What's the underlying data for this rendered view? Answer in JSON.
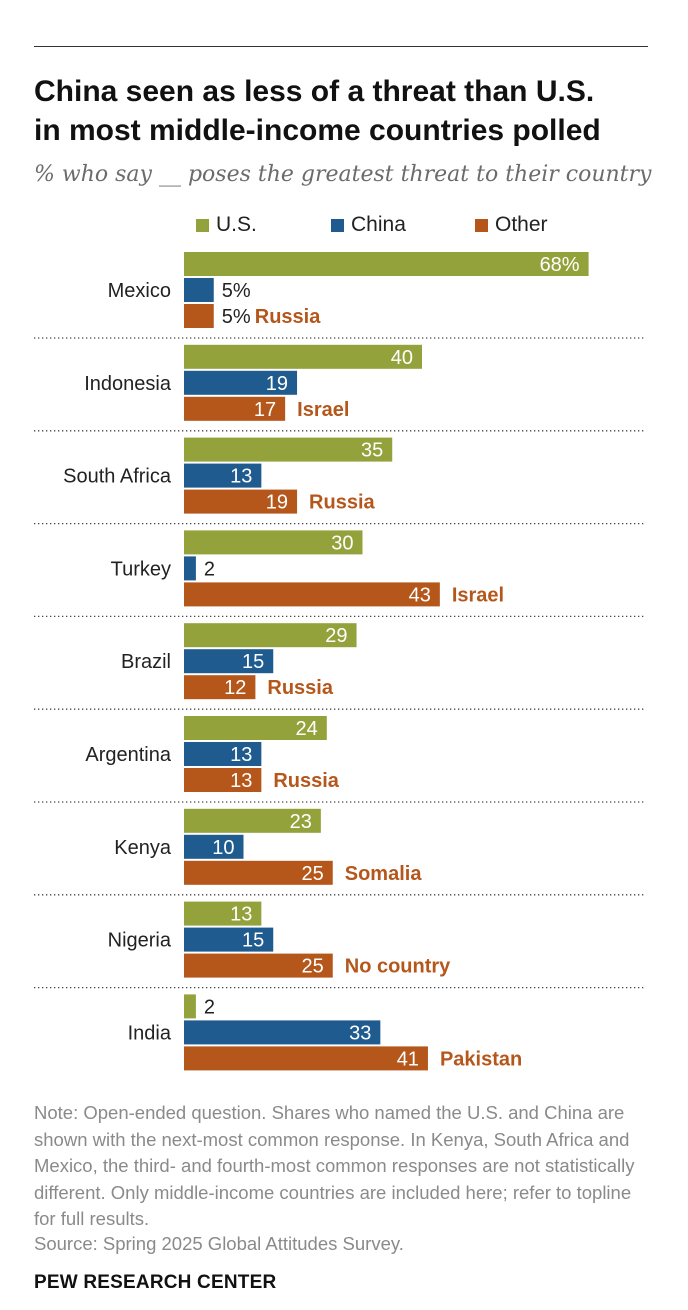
{
  "header": {
    "title_line1": "China seen as less of a threat than U.S.",
    "title_line2": "in most middle-income countries polled",
    "subtitle": "% who say __ poses the greatest threat to their country"
  },
  "colors": {
    "us": "#94a23c",
    "china": "#1f5b8e",
    "other": "#b5571b",
    "other_label": "#b5571b"
  },
  "legend": {
    "us": "U.S.",
    "china": "China",
    "other": "Other"
  },
  "chart_data": {
    "type": "bar",
    "orientation": "horizontal",
    "grouped": true,
    "series_names": [
      "U.S.",
      "China",
      "Other"
    ],
    "categories": [
      "Mexico",
      "Indonesia",
      "South Africa",
      "Turkey",
      "Brazil",
      "Argentina",
      "Kenya",
      "Nigeria",
      "India"
    ],
    "series": [
      {
        "name": "U.S.",
        "values": [
          68,
          40,
          35,
          30,
          29,
          24,
          23,
          13,
          2
        ]
      },
      {
        "name": "China",
        "values": [
          5,
          19,
          13,
          2,
          15,
          13,
          10,
          15,
          33
        ]
      },
      {
        "name": "Other",
        "values": [
          5,
          17,
          19,
          43,
          12,
          13,
          25,
          25,
          41
        ]
      }
    ],
    "other_labels": [
      "Russia",
      "Israel",
      "Russia",
      "Israel",
      "Russia",
      "Russia",
      "Somalia",
      "No country",
      "Pakistan"
    ],
    "value_suffix_first_row": "%",
    "xlim": [
      0,
      100
    ],
    "grid": false,
    "legend_position": "top"
  },
  "footer": {
    "note": "Note: Open-ended question. Shares who named the U.S. and China are shown with the next-most common response. In Kenya, South Africa and Mexico, the third- and fourth-most common responses are not statistically different. Only middle-income countries are included here; refer to topline for full results.",
    "source": "Source: Spring 2025 Global Attitudes Survey.",
    "branding": "PEW RESEARCH CENTER"
  }
}
